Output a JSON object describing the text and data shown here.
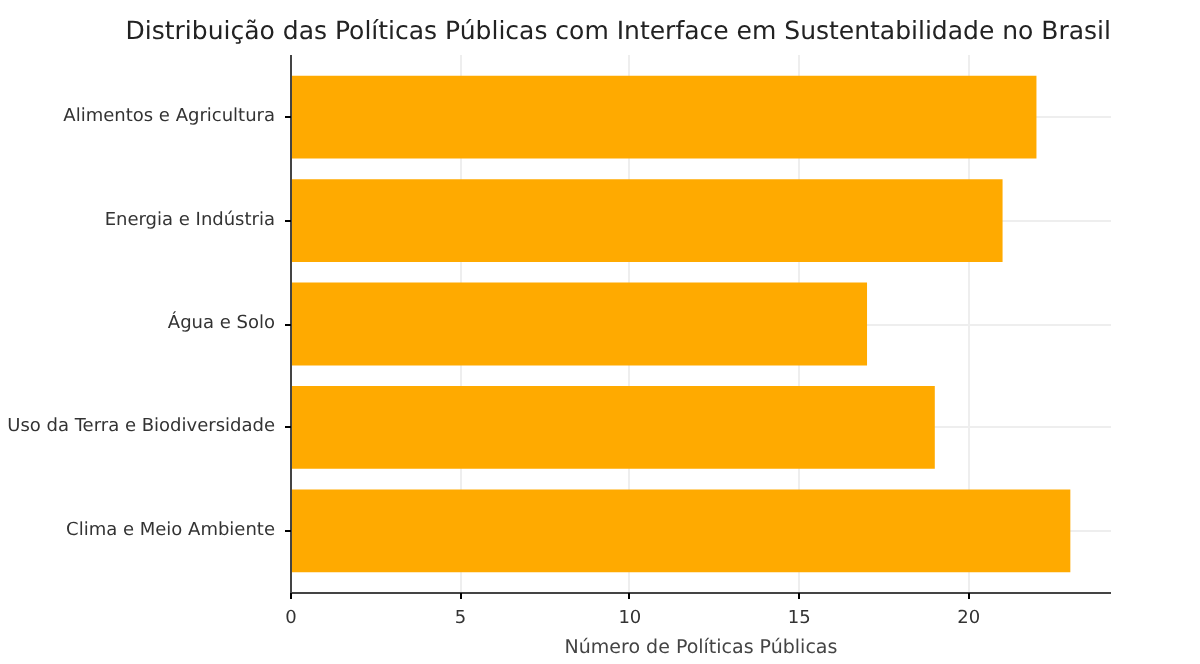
{
  "chart_data": {
    "type": "bar",
    "orientation": "horizontal",
    "title": "Distribuição das Políticas Públicas com Interface em Sustentabilidade no Brasil",
    "xlabel": "Número de Políticas Públicas",
    "categories": [
      "Alimentos e Agricultura",
      "Energia e Indústria",
      "Água e Solo",
      "Uso da Terra e Biodiversidade",
      "Clima e Meio Ambiente"
    ],
    "values": [
      22,
      21,
      17,
      19,
      23
    ],
    "color": "#ffaa00",
    "xlim": [
      0,
      24.2
    ],
    "xticks": [
      0,
      5,
      10,
      15,
      20
    ],
    "grid": true
  }
}
